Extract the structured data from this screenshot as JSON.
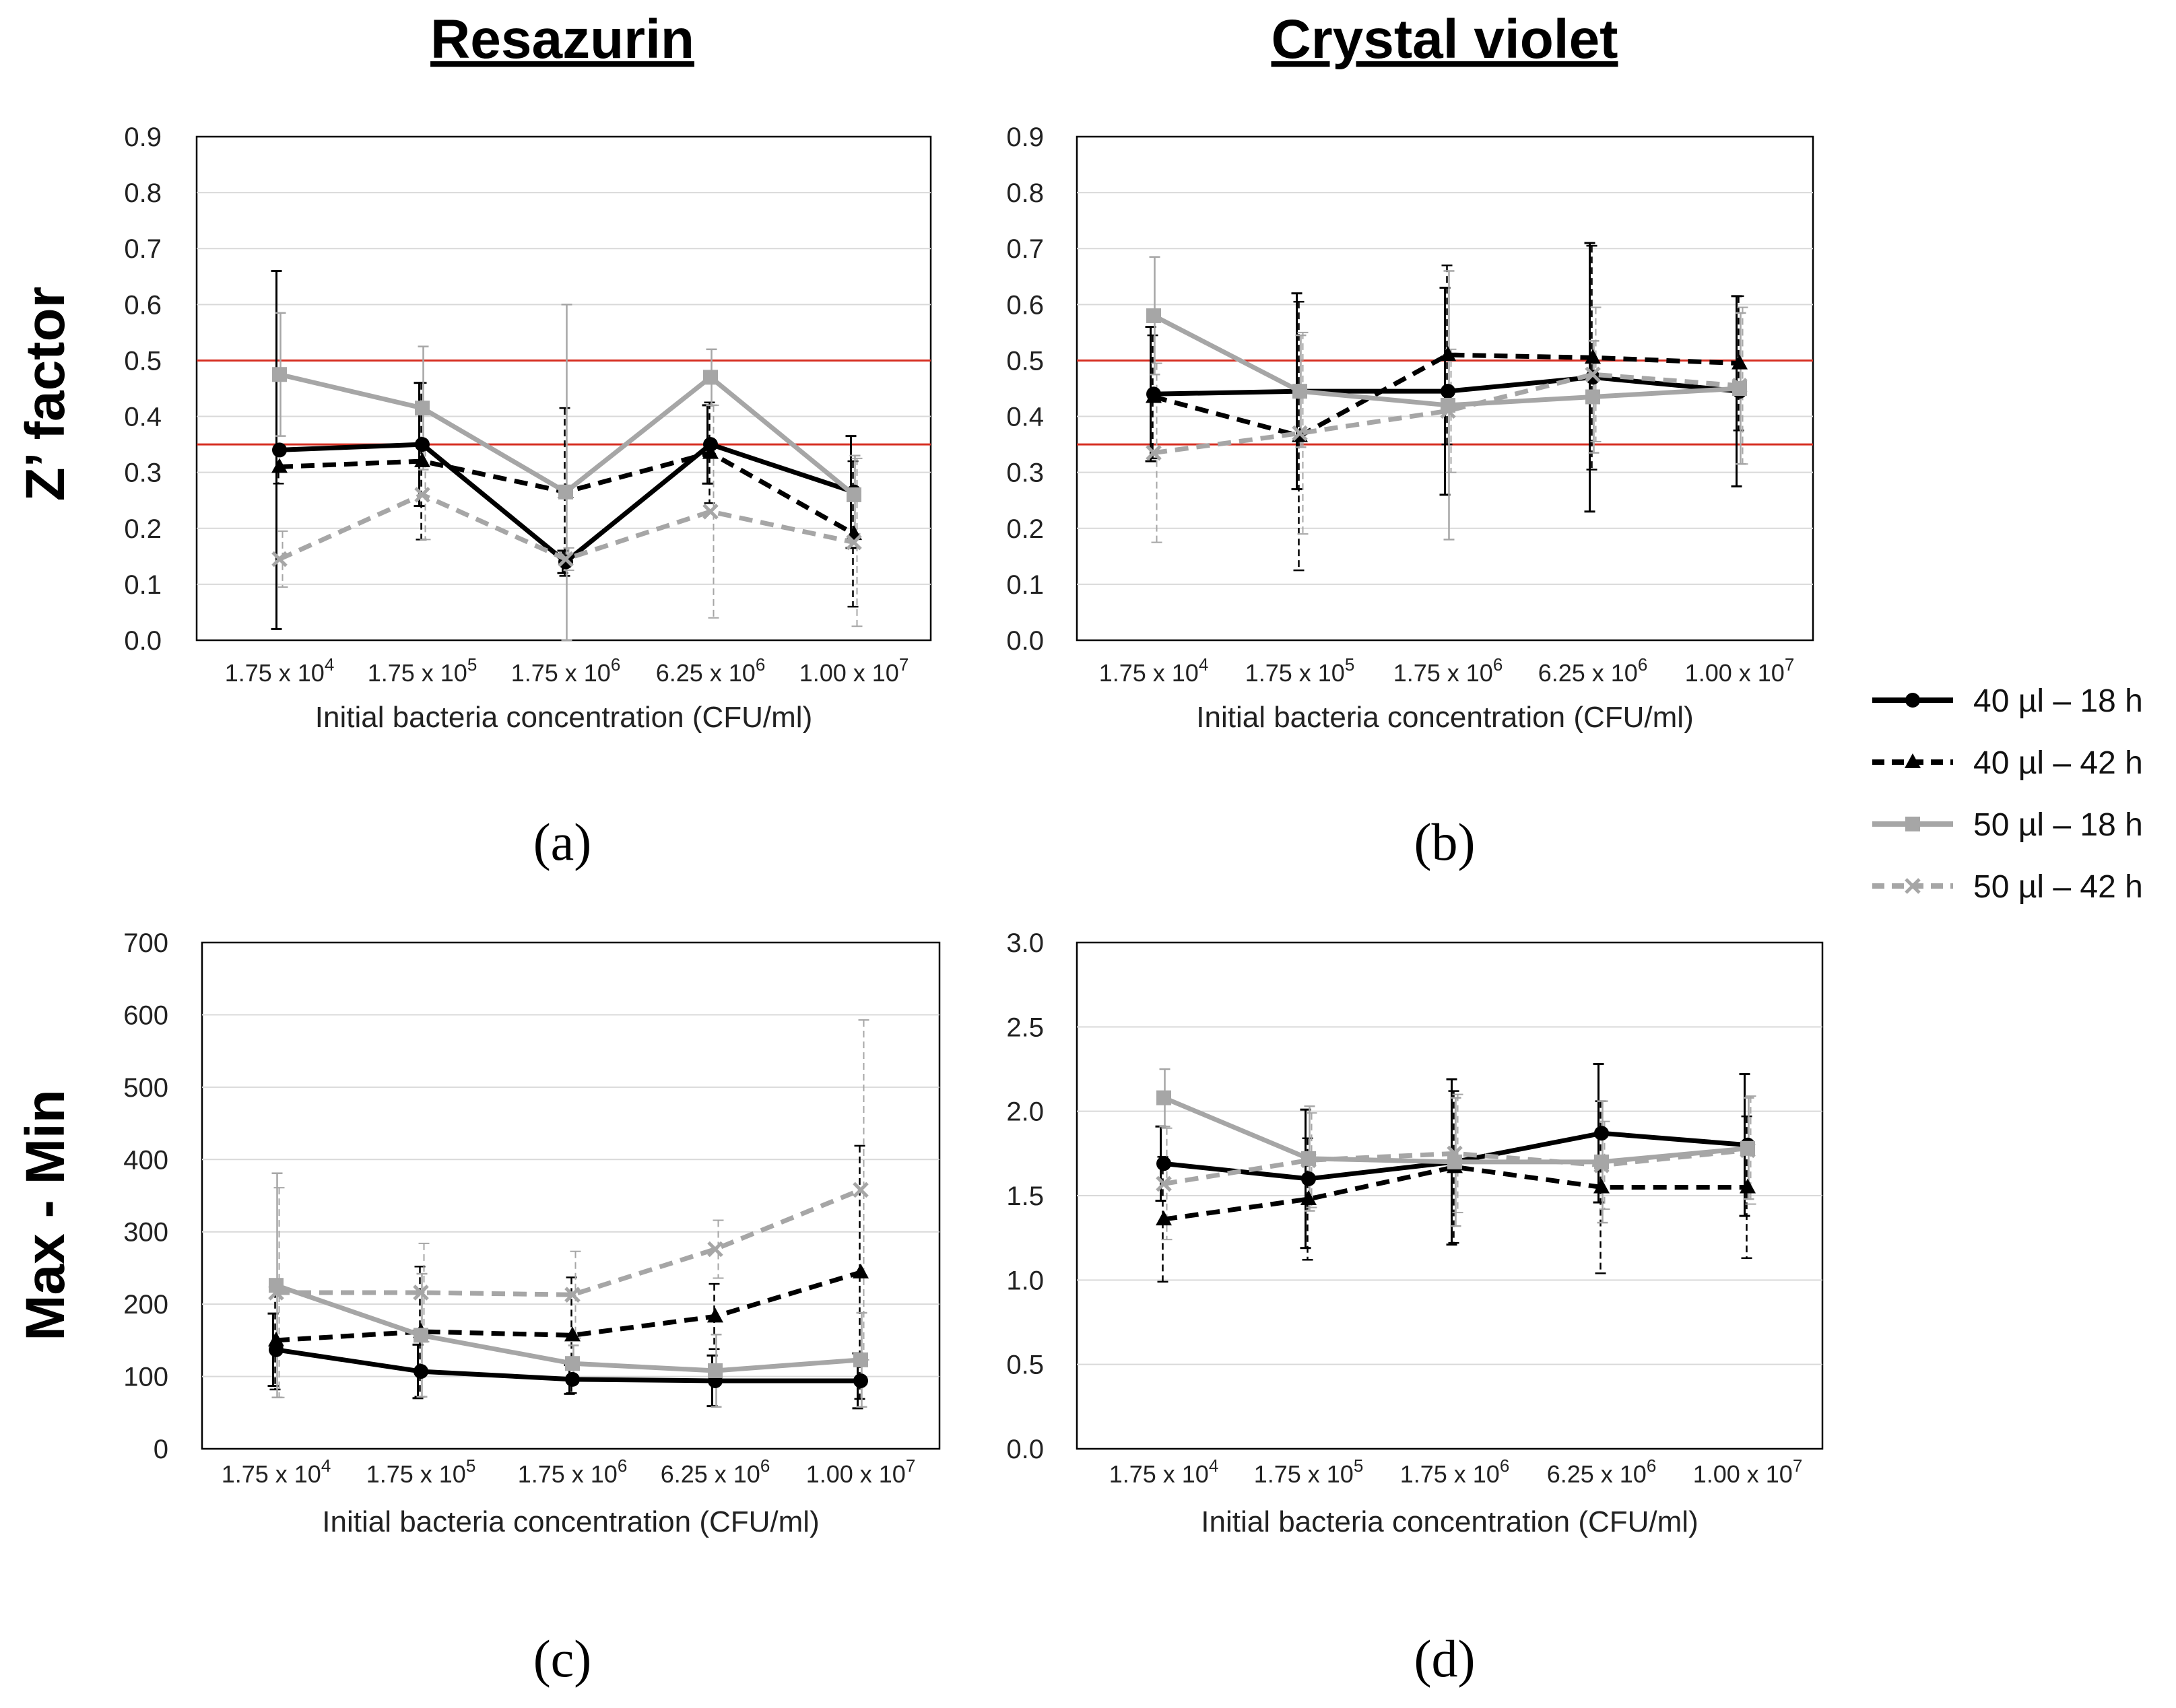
{
  "figure": {
    "col_titles": [
      "Resazurin",
      "Crystal violet"
    ],
    "row_titles": [
      "Z’ factor",
      "Max - Min"
    ],
    "panel_labels": [
      "(a)",
      "(b)",
      "(c)",
      "(d)"
    ]
  },
  "legend": [
    {
      "label": "40 µl – 18 h",
      "color": "#000000",
      "dashed": false,
      "marker": "circle"
    },
    {
      "label": "40 µl – 42 h",
      "color": "#000000",
      "dashed": true,
      "marker": "triangle"
    },
    {
      "label": "50 µl – 18 h",
      "color": "#a6a6a6",
      "dashed": false,
      "marker": "square"
    },
    {
      "label": "50 µl – 42 h",
      "color": "#a6a6a6",
      "dashed": true,
      "marker": "x"
    }
  ],
  "chart_data": [
    {
      "type": "line",
      "panel": "(a)",
      "title": "Resazurin",
      "ylabel": "Z’ factor",
      "xlabel": "Initial bacteria concentration (CFU/ml)",
      "categories": [
        {
          "mant": "1.75 x 10",
          "exp": "4"
        },
        {
          "mant": "1.75 x 10",
          "exp": "5"
        },
        {
          "mant": "1.75 x 10",
          "exp": "6"
        },
        {
          "mant": "6.25 x 10",
          "exp": "6"
        },
        {
          "mant": "1.00 x 10",
          "exp": "7"
        }
      ],
      "ylim": [
        0,
        0.9
      ],
      "yticks": [
        "0.0",
        "0.1",
        "0.2",
        "0.3",
        "0.4",
        "0.5",
        "0.6",
        "0.7",
        "0.8",
        "0.9"
      ],
      "reference_lines": [
        0.35,
        0.5
      ],
      "series": [
        {
          "name": "40 µl – 18 h",
          "values": [
            0.34,
            0.35,
            0.14,
            0.35,
            0.265
          ],
          "errors": [
            0.32,
            0.11,
            0.02,
            0.07,
            0.1
          ]
        },
        {
          "name": "40 µl – 42 h",
          "values": [
            0.31,
            0.32,
            0.265,
            0.335,
            0.19
          ],
          "errors": [
            0.03,
            0.14,
            0.15,
            0.09,
            0.13
          ]
        },
        {
          "name": "50 µl – 18 h",
          "values": [
            0.475,
            0.415,
            0.265,
            0.47,
            0.26
          ],
          "errors": [
            0.11,
            0.11,
            0.335,
            0.05,
            0.07
          ]
        },
        {
          "name": "50 µl – 42 h",
          "values": [
            0.145,
            0.26,
            0.145,
            0.23,
            0.175
          ],
          "errors": [
            0.05,
            0.08,
            0.02,
            0.19,
            0.15
          ]
        }
      ]
    },
    {
      "type": "line",
      "panel": "(b)",
      "title": "Crystal violet",
      "ylabel": "Z’ factor",
      "xlabel": "Initial bacteria concentration (CFU/ml)",
      "categories": [
        {
          "mant": "1.75 x 10",
          "exp": "4"
        },
        {
          "mant": "1.75 x 10",
          "exp": "5"
        },
        {
          "mant": "1.75 x 10",
          "exp": "6"
        },
        {
          "mant": "6.25 x 10",
          "exp": "6"
        },
        {
          "mant": "1.00 x 10",
          "exp": "7"
        }
      ],
      "ylim": [
        0,
        0.9
      ],
      "yticks": [
        "0.0",
        "0.1",
        "0.2",
        "0.3",
        "0.4",
        "0.5",
        "0.6",
        "0.7",
        "0.8",
        "0.9"
      ],
      "reference_lines": [
        0.35,
        0.5
      ],
      "series": [
        {
          "name": "40 µl – 18 h",
          "values": [
            0.44,
            0.445,
            0.445,
            0.47,
            0.445
          ],
          "errors": [
            0.12,
            0.175,
            0.185,
            0.24,
            0.17
          ]
        },
        {
          "name": "40 µl – 42 h",
          "values": [
            0.435,
            0.365,
            0.51,
            0.505,
            0.495
          ],
          "errors": [
            0.11,
            0.24,
            0.16,
            0.2,
            0.12
          ]
        },
        {
          "name": "50 µl – 18 h",
          "values": [
            0.58,
            0.445,
            0.42,
            0.435,
            0.45
          ],
          "errors": [
            0.105,
            0.1,
            0.24,
            0.1,
            0.135
          ]
        },
        {
          "name": "50 µl – 42 h",
          "values": [
            0.335,
            0.37,
            0.41,
            0.475,
            0.455
          ],
          "errors": [
            0.16,
            0.18,
            0.11,
            0.12,
            0.14
          ]
        }
      ]
    },
    {
      "type": "line",
      "panel": "(c)",
      "title": "Resazurin",
      "ylabel": "Max - Min",
      "xlabel": "Initial bacteria concentration (CFU/ml)",
      "categories": [
        {
          "mant": "1.75 x 10",
          "exp": "4"
        },
        {
          "mant": "1.75 x 10",
          "exp": "5"
        },
        {
          "mant": "1.75 x 10",
          "exp": "6"
        },
        {
          "mant": "6.25 x 10",
          "exp": "6"
        },
        {
          "mant": "1.00 x 10",
          "exp": "7"
        }
      ],
      "ylim": [
        0,
        700
      ],
      "yticks": [
        "0",
        "100",
        "200",
        "300",
        "400",
        "500",
        "600",
        "700"
      ],
      "reference_lines": [],
      "series": [
        {
          "name": "40 µl – 18 h",
          "values": [
            137,
            107,
            96,
            94,
            94
          ],
          "errors": [
            50,
            37,
            20,
            35,
            38
          ]
        },
        {
          "name": "40 µl – 42 h",
          "values": [
            150,
            162,
            157,
            183,
            244
          ],
          "errors": [
            68,
            90,
            80,
            45,
            175
          ]
        },
        {
          "name": "50 µl – 18 h",
          "values": [
            226,
            157,
            118,
            108,
            123
          ],
          "errors": [
            155,
            85,
            25,
            50,
            65
          ]
        },
        {
          "name": "50 µl – 42 h",
          "values": [
            216,
            216,
            213,
            276,
            358
          ],
          "errors": [
            145,
            68,
            60,
            40,
            235
          ]
        }
      ]
    },
    {
      "type": "line",
      "panel": "(d)",
      "title": "Crystal violet",
      "ylabel": "Max - Min",
      "xlabel": "Initial bacteria concentration (CFU/ml)",
      "categories": [
        {
          "mant": "1.75 x 10",
          "exp": "4"
        },
        {
          "mant": "1.75 x 10",
          "exp": "5"
        },
        {
          "mant": "1.75 x 10",
          "exp": "6"
        },
        {
          "mant": "6.25 x 10",
          "exp": "6"
        },
        {
          "mant": "1.00 x 10",
          "exp": "7"
        }
      ],
      "ylim": [
        0,
        3.0
      ],
      "yticks": [
        "0.0",
        "0.5",
        "1.0",
        "1.5",
        "2.0",
        "2.5",
        "3.0"
      ],
      "reference_lines": [],
      "series": [
        {
          "name": "40 µl – 18 h",
          "values": [
            1.69,
            1.6,
            1.7,
            1.87,
            1.8
          ],
          "errors": [
            0.22,
            0.41,
            0.49,
            0.41,
            0.42
          ]
        },
        {
          "name": "40 µl – 42 h",
          "values": [
            1.36,
            1.48,
            1.67,
            1.55,
            1.55
          ],
          "errors": [
            0.37,
            0.36,
            0.45,
            0.51,
            0.42
          ]
        },
        {
          "name": "50 µl – 18 h",
          "values": [
            2.08,
            1.72,
            1.7,
            1.7,
            1.78
          ],
          "errors": [
            0.17,
            0.31,
            0.38,
            0.36,
            0.3
          ]
        },
        {
          "name": "50 µl – 42 h",
          "values": [
            1.57,
            1.71,
            1.75,
            1.68,
            1.77
          ],
          "errors": [
            0.33,
            0.28,
            0.35,
            0.26,
            0.32
          ]
        }
      ]
    }
  ]
}
